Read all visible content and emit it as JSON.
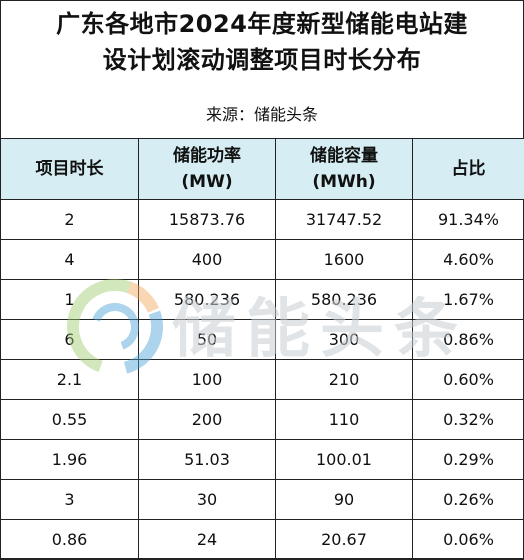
{
  "title": {
    "line1": "广东各地市2024年度新型储能电站建",
    "line2": "设计划滚动调整项目时长分布"
  },
  "source": "来源：储能头条",
  "table": {
    "headers": [
      {
        "line1": "项目时长",
        "line2": ""
      },
      {
        "line1": "储能功率",
        "line2": "(MW)"
      },
      {
        "line1": "储能容量",
        "line2": "(MWh)"
      },
      {
        "line1": "占比",
        "line2": ""
      }
    ],
    "rows": [
      [
        "2",
        "15873.76",
        "31747.52",
        "91.34%"
      ],
      [
        "4",
        "400",
        "1600",
        "4.60%"
      ],
      [
        "1",
        "580.236",
        "580.236",
        "1.67%"
      ],
      [
        "6",
        "50",
        "300",
        "0.86%"
      ],
      [
        "2.1",
        "100",
        "210",
        "0.60%"
      ],
      [
        "0.55",
        "200",
        "110",
        "0.32%"
      ],
      [
        "1.96",
        "51.03",
        "100.01",
        "0.29%"
      ],
      [
        "3",
        "30",
        "90",
        "0.26%"
      ],
      [
        "0.86",
        "24",
        "20.67",
        "0.06%"
      ]
    ]
  },
  "watermark": {
    "text": "储能头条"
  },
  "colors": {
    "header_bg": "#d6eef3",
    "border": "#222222",
    "watermark_text": "#c8cfd4",
    "logo_green": "#9ccb6a",
    "logo_blue": "#4aa3d8",
    "logo_orange": "#f2a65a"
  }
}
